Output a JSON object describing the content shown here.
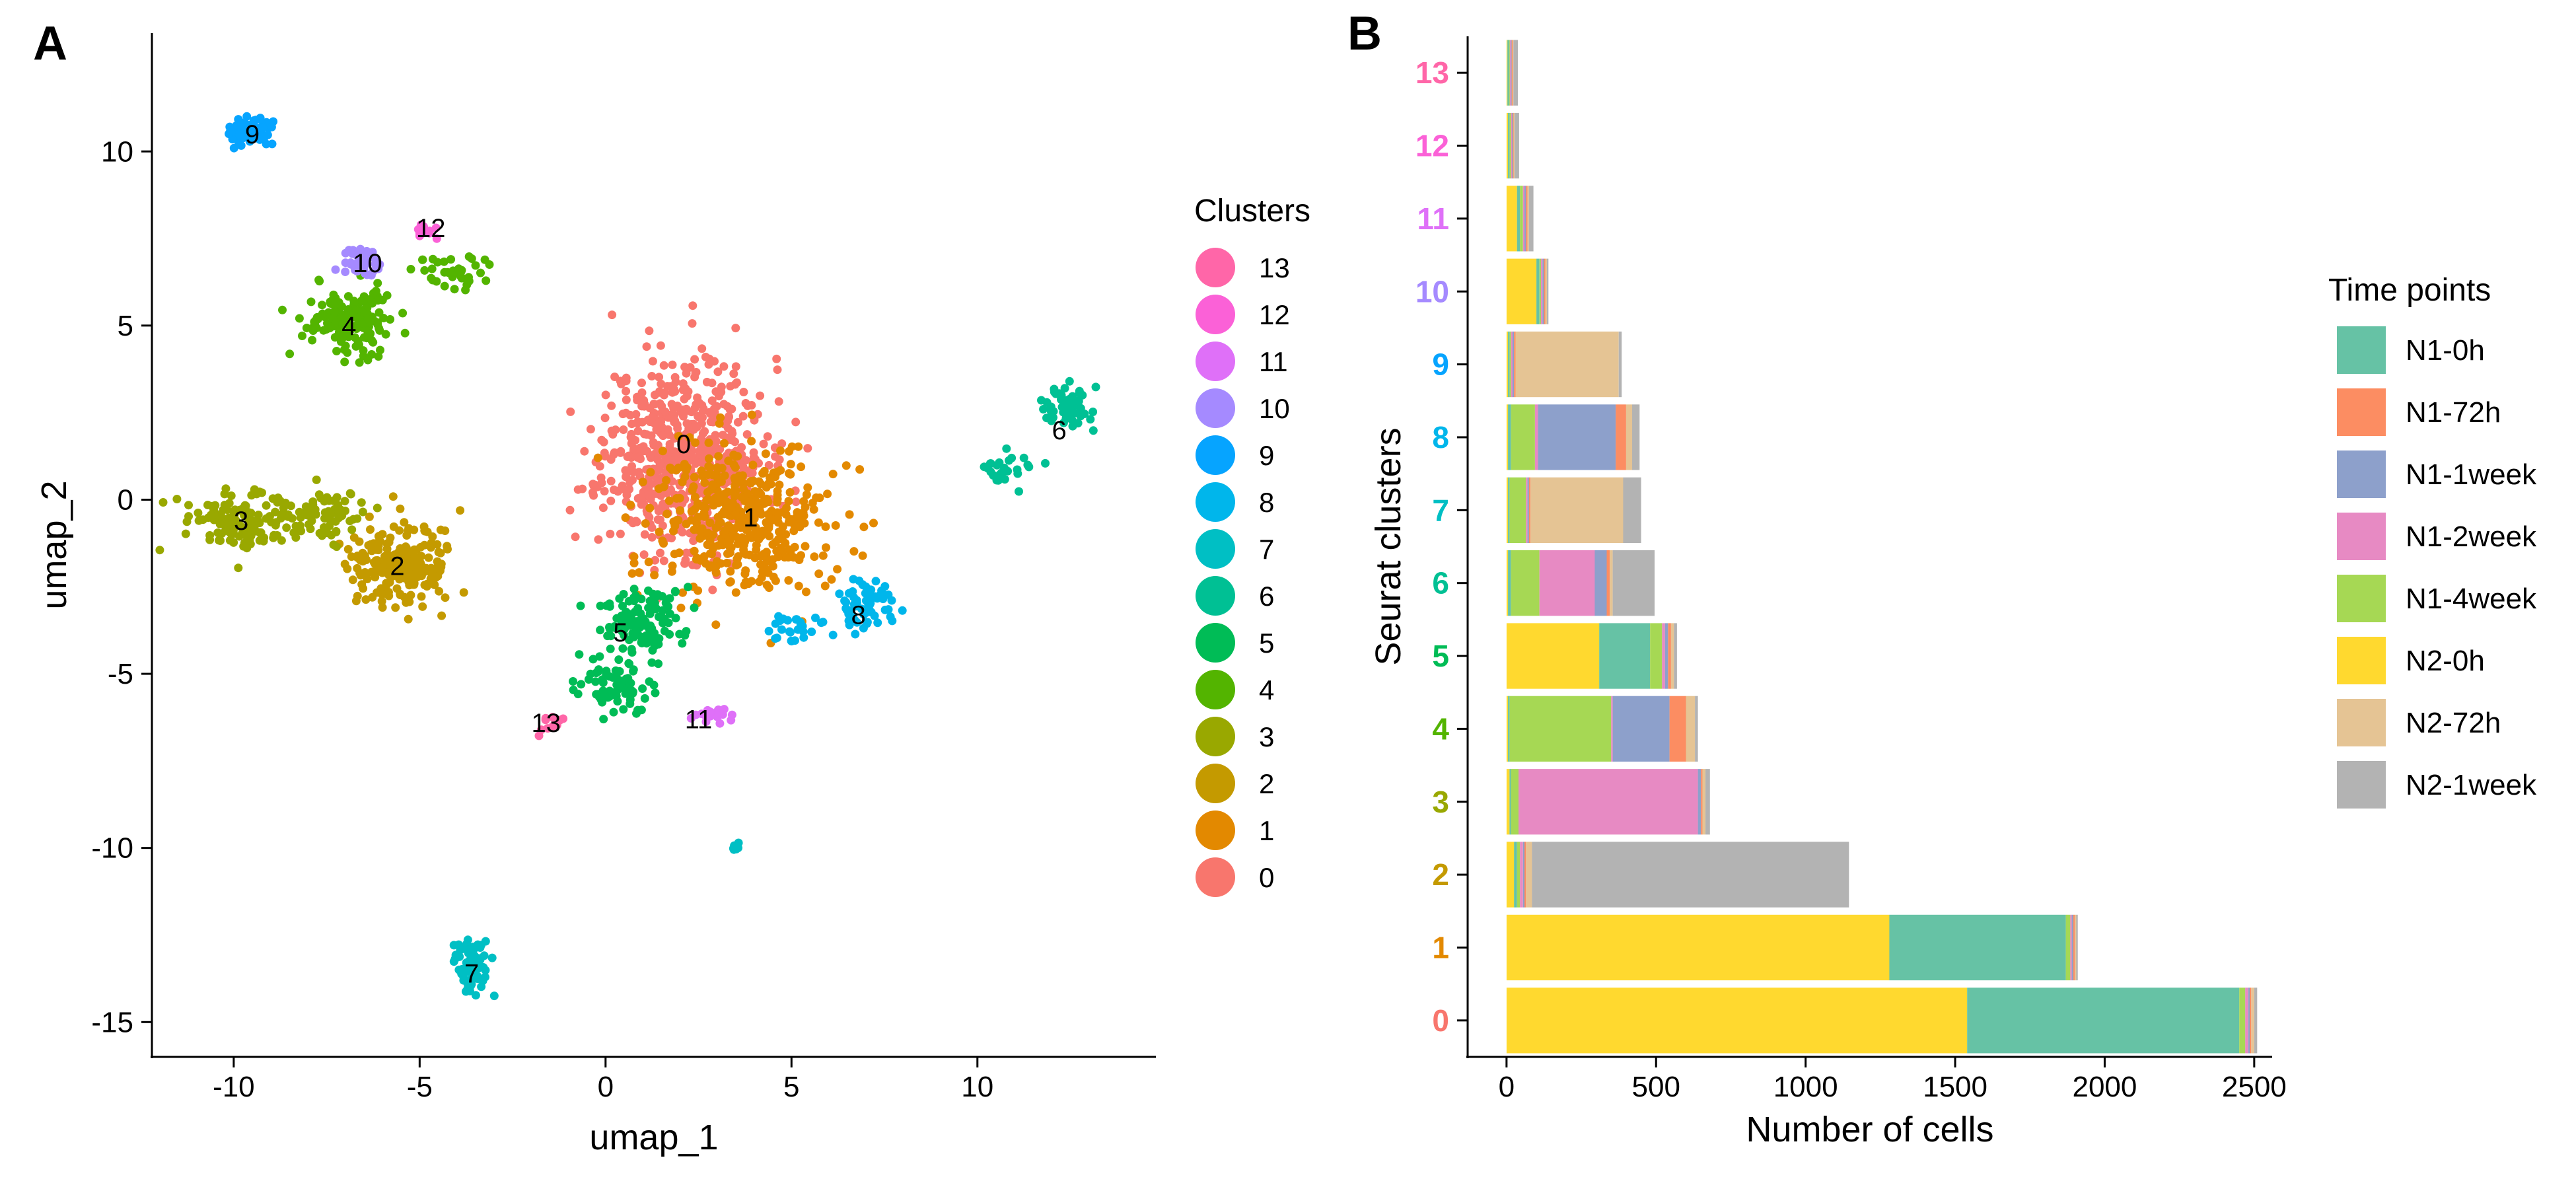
{
  "panel_a_letter": "A",
  "panel_b_letter": "B",
  "chart_data": [
    {
      "type": "scatter",
      "xlabel": "umap_1",
      "ylabel": "umap_2",
      "xlim": [
        -12.2,
        14.8
      ],
      "ylim": [
        -16.0,
        13.4
      ],
      "xticks": [
        -10,
        -5,
        0,
        5,
        10
      ],
      "yticks": [
        -15,
        -10,
        -5,
        0,
        5,
        10
      ],
      "grid": false,
      "legend_title": "Clusters",
      "legend_placement": "right",
      "legend_entries": [
        "13",
        "12",
        "11",
        "10",
        "9",
        "8",
        "7",
        "6",
        "5",
        "4",
        "3",
        "2",
        "1",
        "0"
      ],
      "cluster_colors": {
        "0": "#F8766D",
        "1": "#E38900",
        "2": "#C49A00",
        "3": "#99A800",
        "4": "#53B400",
        "5": "#00BC56",
        "6": "#00C094",
        "7": "#00BFC4",
        "8": "#00B6EB",
        "9": "#06A4FF",
        "10": "#A58AFF",
        "11": "#DF70F8",
        "12": "#FB61D7",
        "13": "#FF66A8"
      },
      "cluster_labels": [
        {
          "label": "0",
          "x": 2.1,
          "y": 1.6
        },
        {
          "label": "1",
          "x": 3.9,
          "y": -0.5
        },
        {
          "label": "2",
          "x": -5.6,
          "y": -1.9
        },
        {
          "label": "3",
          "x": -9.8,
          "y": -0.6
        },
        {
          "label": "4",
          "x": -6.9,
          "y": 5.0
        },
        {
          "label": "5",
          "x": 0.4,
          "y": -3.8
        },
        {
          "label": "6",
          "x": 12.2,
          "y": 2.0
        },
        {
          "label": "7",
          "x": -3.6,
          "y": -13.6
        },
        {
          "label": "8",
          "x": 6.8,
          "y": -3.3
        },
        {
          "label": "9",
          "x": -9.5,
          "y": 10.5
        },
        {
          "label": "10",
          "x": -6.4,
          "y": 6.8
        },
        {
          "label": "11",
          "x": 2.5,
          "y": -6.3
        },
        {
          "label": "12",
          "x": -4.7,
          "y": 7.8
        },
        {
          "label": "13",
          "x": -1.6,
          "y": -6.4
        }
      ],
      "clusters": [
        {
          "id": "0",
          "n": 650,
          "seed": 11,
          "blobs": [
            [
              2.1,
              1.3,
              1.8,
              2.3,
              1
            ]
          ]
        },
        {
          "id": "1",
          "n": 420,
          "seed": 12,
          "blobs": [
            [
              3.7,
              -0.6,
              1.9,
              1.9,
              1
            ]
          ]
        },
        {
          "id": "2",
          "n": 220,
          "seed": 13,
          "blobs": [
            [
              -5.5,
              -1.9,
              1.2,
              1.0,
              1
            ]
          ]
        },
        {
          "id": "3",
          "n": 200,
          "seed": 14,
          "blobs": [
            [
              -9.8,
              -0.6,
              1.2,
              0.7,
              0.6
            ],
            [
              -7.7,
              -0.4,
              1.2,
              0.6,
              0.4
            ]
          ]
        },
        {
          "id": "4",
          "n": 190,
          "seed": 15,
          "blobs": [
            [
              -6.8,
              5.2,
              1.0,
              0.8,
              0.8
            ],
            [
              -4.2,
              6.6,
              0.9,
              0.4,
              0.2
            ]
          ]
        },
        {
          "id": "5",
          "n": 190,
          "seed": 16,
          "blobs": [
            [
              1.0,
              -3.5,
              0.9,
              0.8,
              0.6
            ],
            [
              0.2,
              -5.4,
              0.9,
              0.7,
              0.4
            ]
          ]
        },
        {
          "id": "6",
          "n": 90,
          "seed": 17,
          "blobs": [
            [
              12.4,
              2.6,
              0.5,
              0.5,
              0.65
            ],
            [
              10.7,
              0.9,
              0.7,
              0.4,
              0.35
            ]
          ]
        },
        {
          "id": "7",
          "n": 80,
          "seed": 18,
          "blobs": [
            [
              -3.6,
              -13.4,
              0.35,
              0.7,
              0.9
            ],
            [
              3.5,
              -10.0,
              0.08,
              0.15,
              0.1
            ]
          ]
        },
        {
          "id": "8",
          "n": 90,
          "seed": 19,
          "blobs": [
            [
              7.0,
              -3.0,
              0.6,
              0.6,
              0.7
            ],
            [
              5.2,
              -3.7,
              0.7,
              0.4,
              0.3
            ]
          ]
        },
        {
          "id": "9",
          "n": 70,
          "seed": 20,
          "blobs": [
            [
              -9.6,
              10.6,
              0.5,
              0.35,
              1
            ]
          ]
        },
        {
          "id": "10",
          "n": 40,
          "seed": 21,
          "blobs": [
            [
              -6.5,
              6.8,
              0.5,
              0.35,
              1
            ]
          ]
        },
        {
          "id": "11",
          "n": 22,
          "seed": 22,
          "blobs": [
            [
              2.8,
              -6.2,
              0.45,
              0.2,
              1
            ]
          ]
        },
        {
          "id": "12",
          "n": 10,
          "seed": 23,
          "blobs": [
            [
              -4.8,
              7.7,
              0.3,
              0.2,
              1
            ]
          ]
        },
        {
          "id": "13",
          "n": 12,
          "seed": 24,
          "blobs": [
            [
              -1.5,
              -6.5,
              0.3,
              0.3,
              1
            ]
          ]
        }
      ]
    },
    {
      "type": "bar",
      "orientation": "horizontal",
      "stacked": true,
      "xlabel": "Number of cells",
      "ylabel": "Seurat clusters",
      "xlim": [
        -130,
        2560
      ],
      "xticks": [
        0,
        500,
        1000,
        1500,
        2000,
        2500
      ],
      "grid": false,
      "legend_title": "Time points",
      "legend_placement": "right",
      "categories": [
        "0",
        "1",
        "2",
        "3",
        "4",
        "5",
        "6",
        "7",
        "8",
        "9",
        "10",
        "11",
        "12",
        "13"
      ],
      "category_label_colors": [
        "#F8766D",
        "#E38900",
        "#C49A00",
        "#99A800",
        "#53B400",
        "#00BC56",
        "#00C094",
        "#00BFC4",
        "#00B6EB",
        "#06A4FF",
        "#A58AFF",
        "#DF70F8",
        "#FB61D7",
        "#FF66A8"
      ],
      "series": [
        {
          "name": "N2-0h",
          "color": "#FFD92F",
          "values": [
            1540,
            1280,
            25,
            10,
            5,
            310,
            5,
            5,
            5,
            5,
            100,
            35,
            5,
            3
          ]
        },
        {
          "name": "N1-0h",
          "color": "#66C2A5",
          "values": [
            910,
            590,
            10,
            5,
            5,
            170,
            10,
            5,
            10,
            5,
            10,
            10,
            5,
            5
          ]
        },
        {
          "name": "N1-4week",
          "color": "#A6D854",
          "values": [
            20,
            15,
            10,
            25,
            340,
            40,
            95,
            55,
            80,
            5,
            5,
            10,
            5,
            3
          ]
        },
        {
          "name": "N1-2week",
          "color": "#E78AC3",
          "values": [
            10,
            5,
            10,
            600,
            5,
            10,
            185,
            5,
            10,
            5,
            5,
            5,
            3,
            3
          ]
        },
        {
          "name": "N1-1week",
          "color": "#8DA0CB",
          "values": [
            5,
            5,
            5,
            10,
            190,
            10,
            40,
            5,
            260,
            5,
            5,
            5,
            3,
            3
          ]
        },
        {
          "name": "N1-72h",
          "color": "#FC8D62",
          "values": [
            5,
            5,
            5,
            5,
            55,
            10,
            10,
            5,
            35,
            5,
            5,
            5,
            3,
            3
          ]
        },
        {
          "name": "N2-72h",
          "color": "#E5C494",
          "values": [
            10,
            5,
            20,
            10,
            30,
            10,
            10,
            310,
            20,
            345,
            5,
            5,
            3,
            3
          ]
        },
        {
          "name": "N2-1week",
          "color": "#B3B3B3",
          "values": [
            10,
            5,
            1060,
            15,
            10,
            10,
            140,
            60,
            25,
            10,
            5,
            15,
            15,
            15
          ]
        }
      ],
      "legend_entries": [
        "N1-0h",
        "N1-72h",
        "N1-1week",
        "N1-2week",
        "N1-4week",
        "N2-0h",
        "N2-72h",
        "N2-1week"
      ]
    }
  ]
}
